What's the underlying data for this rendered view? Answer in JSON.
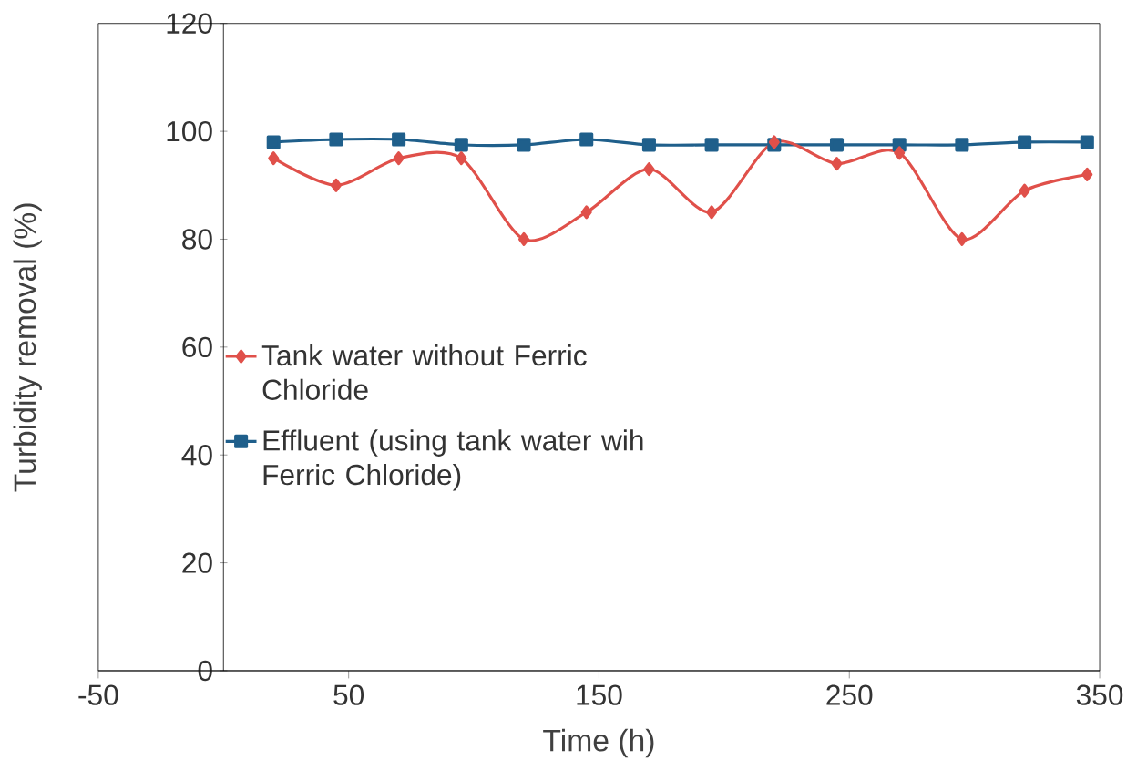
{
  "chart_data": {
    "type": "line",
    "xlabel": "Time (h)",
    "ylabel": "Turbidity removal (%)",
    "x": [
      20,
      45,
      70,
      95,
      120,
      145,
      170,
      195,
      220,
      245,
      270,
      295,
      320,
      345
    ],
    "series": [
      {
        "name": "Tank water without Ferric Chloride",
        "color": "#e0504a",
        "marker": "diamond",
        "values": [
          95,
          90,
          95,
          95,
          80,
          85,
          93,
          85,
          98,
          94,
          96,
          80,
          89,
          92
        ]
      },
      {
        "name": "Effluent (using tank water wih Ferric Chloride)",
        "color": "#1f5f8b",
        "marker": "square",
        "values": [
          98,
          98.5,
          98.5,
          97.5,
          97.5,
          98.5,
          97.5,
          97.5,
          97.5,
          97.5,
          97.5,
          97.5,
          98,
          98
        ]
      }
    ],
    "xlim": [
      -50,
      350
    ],
    "xticks": [
      -50,
      50,
      150,
      250,
      350
    ],
    "ylim": [
      0,
      120
    ],
    "yticks": [
      0,
      20,
      40,
      60,
      80,
      100,
      120
    ],
    "grid": false,
    "legend": "center",
    "line_style": "solid"
  }
}
